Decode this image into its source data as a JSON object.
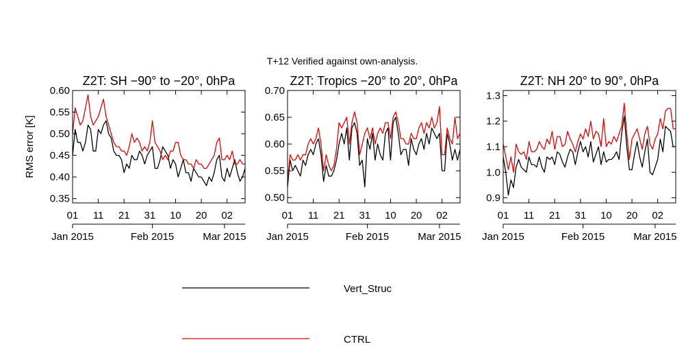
{
  "figure": {
    "suptitle": "T+12 Verified against own-analysis."
  },
  "legend": [
    {
      "name": "Vert_Struc",
      "color": "#000000"
    },
    {
      "name": "CTRL",
      "color": "#e00000"
    }
  ],
  "chart_data": [
    {
      "type": "line",
      "title": "Z2T: SH −90° to −20°, 0hPa",
      "ylabel": "RMS error [K]",
      "xlabel": "",
      "ylim": [
        0.34,
        0.6
      ],
      "yticks": [
        0.35,
        0.4,
        0.45,
        0.5,
        0.55,
        0.6
      ],
      "ytick_labels": [
        "0.35",
        "0.40",
        "0.45",
        "0.50",
        "0.55",
        "0.60"
      ],
      "x_start": "2015-01-01",
      "x_end": "2015-03-09",
      "xticks": [
        0,
        10,
        20,
        30,
        40,
        50,
        60
      ],
      "xtick_labels": [
        "01",
        "11",
        "21",
        "31",
        "10",
        "20",
        "02"
      ],
      "month_ticks": [
        0,
        31,
        59
      ],
      "month_labels": [
        "Jan 2015",
        "Feb 2015",
        "Mar 2015"
      ],
      "series": [
        {
          "name": "Vert_Struc",
          "color": "#000000",
          "values": [
            0.45,
            0.51,
            0.48,
            0.48,
            0.46,
            0.48,
            0.52,
            0.51,
            0.46,
            0.46,
            0.51,
            0.5,
            0.52,
            0.53,
            0.5,
            0.49,
            0.46,
            0.45,
            0.45,
            0.44,
            0.41,
            0.43,
            0.42,
            0.45,
            0.44,
            0.44,
            0.46,
            0.45,
            0.43,
            0.45,
            0.46,
            0.47,
            0.42,
            0.42,
            0.44,
            0.47,
            0.46,
            0.45,
            0.42,
            0.44,
            0.43,
            0.4,
            0.42,
            0.44,
            0.41,
            0.41,
            0.39,
            0.42,
            0.41,
            0.4,
            0.4,
            0.39,
            0.38,
            0.4,
            0.39,
            0.41,
            0.44,
            0.45,
            0.4,
            0.39,
            0.42,
            0.4,
            0.42,
            0.44,
            0.41,
            0.39,
            0.4,
            0.42
          ]
        },
        {
          "name": "CTRL",
          "color": "#e00000",
          "values": [
            0.5,
            0.56,
            0.54,
            0.52,
            0.53,
            0.56,
            0.59,
            0.54,
            0.52,
            0.53,
            0.54,
            0.56,
            0.58,
            0.54,
            0.52,
            0.5,
            0.48,
            0.47,
            0.47,
            0.46,
            0.46,
            0.45,
            0.47,
            0.5,
            0.48,
            0.49,
            0.48,
            0.46,
            0.47,
            0.46,
            0.48,
            0.53,
            0.48,
            0.47,
            0.46,
            0.44,
            0.45,
            0.44,
            0.46,
            0.46,
            0.48,
            0.48,
            0.45,
            0.44,
            0.44,
            0.43,
            0.43,
            0.42,
            0.44,
            0.43,
            0.43,
            0.42,
            0.42,
            0.43,
            0.44,
            0.45,
            0.48,
            0.49,
            0.44,
            0.44,
            0.45,
            0.44,
            0.46,
            0.43,
            0.43,
            0.44,
            0.43,
            0.43
          ]
        }
      ]
    },
    {
      "type": "line",
      "title": "Z2T: Tropics −20° to 20°, 0hPa",
      "ylabel": "",
      "xlabel": "",
      "ylim": [
        0.49,
        0.7
      ],
      "yticks": [
        0.5,
        0.55,
        0.6,
        0.65,
        0.7
      ],
      "ytick_labels": [
        "0.50",
        "0.55",
        "0.60",
        "0.65",
        "0.70"
      ],
      "x_start": "2015-01-01",
      "x_end": "2015-03-09",
      "xticks": [
        0,
        10,
        20,
        30,
        40,
        50,
        60
      ],
      "xtick_labels": [
        "01",
        "11",
        "21",
        "31",
        "10",
        "20",
        "02"
      ],
      "month_ticks": [
        0,
        31,
        59
      ],
      "month_labels": [
        "Jan 2015",
        "Feb 2015",
        "Mar 2015"
      ],
      "series": [
        {
          "name": "Vert_Struc",
          "color": "#000000",
          "values": [
            0.52,
            0.57,
            0.55,
            0.56,
            0.55,
            0.54,
            0.57,
            0.56,
            0.58,
            0.59,
            0.58,
            0.6,
            0.61,
            0.58,
            0.53,
            0.56,
            0.54,
            0.54,
            0.55,
            0.57,
            0.6,
            0.62,
            0.6,
            0.63,
            0.57,
            0.63,
            0.64,
            0.62,
            0.56,
            0.57,
            0.52,
            0.61,
            0.59,
            0.62,
            0.57,
            0.6,
            0.58,
            0.57,
            0.62,
            0.63,
            0.57,
            0.64,
            0.65,
            0.62,
            0.58,
            0.59,
            0.59,
            0.56,
            0.61,
            0.59,
            0.58,
            0.6,
            0.61,
            0.59,
            0.62,
            0.6,
            0.63,
            0.62,
            0.61,
            0.62,
            0.55,
            0.55,
            0.62,
            0.6,
            0.57,
            0.59,
            0.57,
            0.59
          ]
        },
        {
          "name": "CTRL",
          "color": "#e00000",
          "values": [
            0.53,
            0.58,
            0.57,
            0.57,
            0.58,
            0.57,
            0.58,
            0.58,
            0.6,
            0.61,
            0.6,
            0.61,
            0.63,
            0.6,
            0.55,
            0.58,
            0.56,
            0.55,
            0.56,
            0.59,
            0.64,
            0.63,
            0.64,
            0.65,
            0.6,
            0.64,
            0.66,
            0.64,
            0.58,
            0.6,
            0.62,
            0.63,
            0.61,
            0.63,
            0.6,
            0.62,
            0.63,
            0.62,
            0.64,
            0.64,
            0.61,
            0.65,
            0.66,
            0.64,
            0.61,
            0.61,
            0.6,
            0.6,
            0.62,
            0.61,
            0.61,
            0.63,
            0.64,
            0.62,
            0.64,
            0.63,
            0.65,
            0.63,
            0.64,
            0.67,
            0.58,
            0.58,
            0.63,
            0.61,
            0.6,
            0.65,
            0.61,
            0.62
          ]
        }
      ]
    },
    {
      "type": "line",
      "title": "Z2T: NH 20° to 90°, 0hPa",
      "ylabel": "",
      "xlabel": "",
      "ylim": [
        0.88,
        1.32
      ],
      "yticks": [
        0.9,
        1.0,
        1.1,
        1.2,
        1.3
      ],
      "ytick_labels": [
        "0.9",
        "1.0",
        "1.1",
        "1.2",
        "1.3"
      ],
      "x_start": "2015-01-01",
      "x_end": "2015-03-09",
      "xticks": [
        0,
        10,
        20,
        30,
        40,
        50,
        60
      ],
      "xtick_labels": [
        "01",
        "11",
        "21",
        "31",
        "10",
        "20",
        "02"
      ],
      "month_ticks": [
        0,
        31,
        59
      ],
      "month_labels": [
        "Jan 2015",
        "Feb 2015",
        "Mar 2015"
      ],
      "series": [
        {
          "name": "Vert_Struc",
          "color": "#000000",
          "values": [
            1.06,
            1.0,
            0.91,
            0.97,
            0.94,
            1.02,
            1.05,
            1.02,
            1.01,
            1.0,
            1.06,
            1.03,
            1.03,
            1.02,
            1.06,
            1.02,
            1.0,
            1.06,
            1.05,
            1.06,
            1.03,
            1.08,
            1.07,
            1.04,
            1.02,
            1.06,
            1.09,
            1.08,
            1.03,
            1.08,
            1.12,
            1.08,
            1.1,
            1.06,
            1.12,
            1.04,
            1.07,
            1.1,
            1.03,
            1.08,
            1.04,
            1.05,
            1.05,
            1.06,
            1.08,
            1.05,
            1.15,
            1.22,
            1.1,
            1.01,
            1.01,
            1.07,
            1.12,
            1.06,
            1.02,
            1.08,
            1.13,
            1.0,
            0.99,
            1.02,
            1.05,
            1.13,
            1.08,
            1.18,
            1.17,
            1.16,
            1.1,
            1.1
          ]
        },
        {
          "name": "CTRL",
          "color": "#e00000",
          "values": [
            1.11,
            1.06,
            1.01,
            1.06,
            1.0,
            1.11,
            1.08,
            1.07,
            1.08,
            1.05,
            1.12,
            1.08,
            1.08,
            1.09,
            1.12,
            1.1,
            1.09,
            1.13,
            1.11,
            1.16,
            1.09,
            1.14,
            1.14,
            1.1,
            1.11,
            1.16,
            1.13,
            1.11,
            1.08,
            1.12,
            1.15,
            1.13,
            1.17,
            1.14,
            1.2,
            1.13,
            1.16,
            1.15,
            1.1,
            1.21,
            1.1,
            1.12,
            1.11,
            1.14,
            1.12,
            1.15,
            1.18,
            1.27,
            1.15,
            1.05,
            1.13,
            1.15,
            1.17,
            1.13,
            1.09,
            1.15,
            1.18,
            1.11,
            1.09,
            1.13,
            1.15,
            1.21,
            1.17,
            1.24,
            1.25,
            1.25,
            1.17,
            1.17
          ]
        }
      ]
    }
  ]
}
